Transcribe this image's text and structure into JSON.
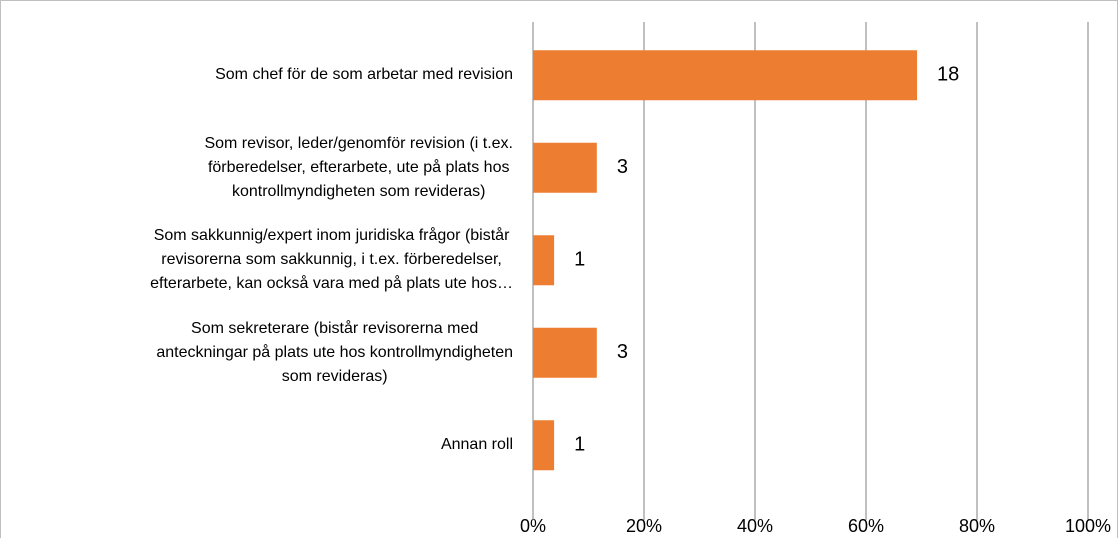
{
  "chart_data": {
    "type": "bar",
    "orientation": "horizontal",
    "categories": [
      "Som chef för de som arbetar med revision",
      "Som revisor, leder/genomför revision (i t.ex.\nförberedelser, efterarbete, ute på plats hos\nkontrollmyndigheten som revideras)",
      "Som sakkunnig/expert inom juridiska frågor (bistår\nrevisorerna som sakkunnig, i t.ex. förberedelser,\nefterarbete, kan också vara med på plats ute hos…",
      "Som sekreterare (bistår revisorerna med\nanteckningar på plats ute hos kontrollmyndigheten\nsom revideras)",
      "Annan roll"
    ],
    "values": [
      69.2,
      11.5,
      3.8,
      11.5,
      3.8
    ],
    "counts": [
      18,
      3,
      1,
      3,
      1
    ],
    "color": "#ed7d31",
    "xlim": [
      0,
      100
    ],
    "xticks": [
      {
        "value": 0,
        "label": "0%"
      },
      {
        "value": 20,
        "label": "20%"
      },
      {
        "value": 40,
        "label": "40%"
      },
      {
        "value": 60,
        "label": "60%"
      },
      {
        "value": 80,
        "label": "80%"
      },
      {
        "value": 100,
        "label": "100%"
      }
    ],
    "grid": true
  }
}
